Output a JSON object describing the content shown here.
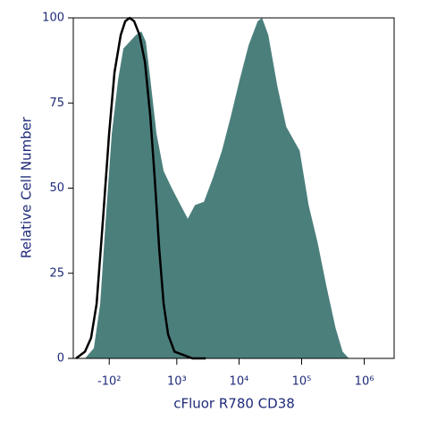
{
  "chart_data": {
    "type": "histogram-overlay",
    "x_label": "cFluor R780 CD38",
    "y_label": "Relative Cell Number",
    "xscale": "biexponential",
    "xlim": [
      -670,
      3000000
    ],
    "ylim": [
      0,
      100
    ],
    "xticks": [
      {
        "value": -100,
        "label": "-10²"
      },
      {
        "value": 1000,
        "label": "10³"
      },
      {
        "value": 10000,
        "label": "10⁴"
      },
      {
        "value": 100000,
        "label": "10⁵"
      },
      {
        "value": 1000000,
        "label": "10⁶"
      }
    ],
    "yticks": [
      0,
      25,
      50,
      75,
      100
    ],
    "series": [
      {
        "style": "filled",
        "color": "#4b7f7c",
        "x": [
          -415,
          -277,
          -197,
          -138,
          -75,
          -16,
          33,
          92,
          157,
          219,
          277,
          342,
          449,
          600,
          825,
          1080,
          1510,
          1970,
          2750,
          3820,
          5320,
          7380,
          10270,
          14260,
          19820,
          23350,
          29380,
          40860,
          56800,
          93000,
          129000,
          180000,
          250000,
          347000,
          451000,
          568000
        ],
        "values": [
          0,
          3,
          16,
          40,
          66,
          82,
          91,
          93,
          95,
          96,
          93,
          82,
          66,
          55,
          50,
          46,
          41,
          45,
          46,
          53,
          61,
          71,
          82,
          92,
          99,
          100,
          95,
          80,
          68,
          61,
          45,
          34,
          21,
          9,
          2,
          0
        ]
      },
      {
        "style": "outline",
        "color": "#000000",
        "x": [
          -600,
          -415,
          -317,
          -241,
          -167,
          -101,
          -50,
          8,
          50,
          92,
          138,
          197,
          265,
          342,
          415,
          503,
          600,
          715,
          915,
          1280,
          1785,
          2940
        ],
        "values": [
          0,
          2,
          6,
          16,
          40,
          66,
          84,
          95,
          99,
          100,
          99,
          95,
          87,
          71,
          53,
          32,
          16,
          7,
          2,
          1,
          0,
          0
        ]
      }
    ]
  }
}
